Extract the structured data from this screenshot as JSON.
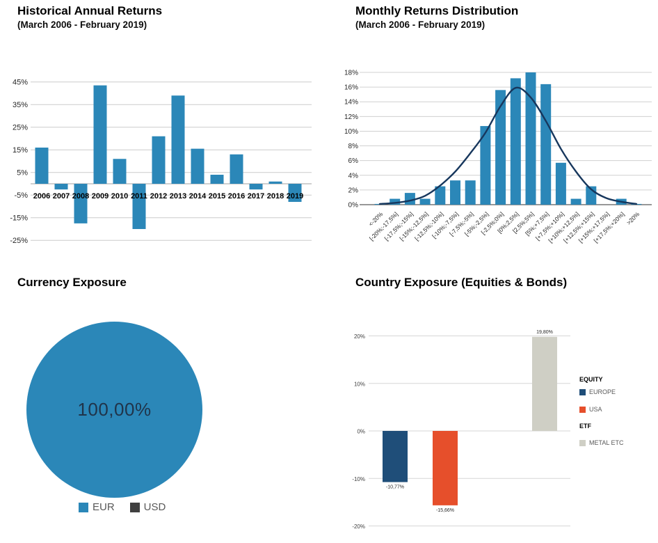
{
  "chart_data": [
    {
      "id": "historical-annual-returns",
      "type": "bar",
      "title": "Historical Annual Returns",
      "subtitle": "(March 2006 - February 2019)",
      "categories": [
        "2006",
        "2007",
        "2008",
        "2009",
        "2010",
        "2011",
        "2012",
        "2013",
        "2014",
        "2015",
        "2016",
        "2017",
        "2018",
        "2019"
      ],
      "values": [
        16,
        -2.5,
        -17.5,
        43.5,
        11,
        -20,
        21,
        39,
        15.5,
        4,
        13,
        -2.5,
        1,
        -8
      ],
      "ylim": [
        -25,
        45
      ],
      "yticks": [
        45,
        35,
        25,
        15,
        5,
        -5,
        -15,
        -25
      ],
      "ytick_labels": [
        "45%",
        "35%",
        "25%",
        "15%",
        "5%",
        "-5%",
        "-15%",
        "-25%"
      ],
      "grid": true,
      "bar_color": "#2b87b8",
      "unit": "percent"
    },
    {
      "id": "monthly-returns-distribution",
      "type": "bar+line",
      "title": "Monthly Returns Distribution",
      "subtitle": "(March 2006 - February 2019)",
      "categories": [
        "<-20%",
        "[-20%;-17,5%]",
        "[-17,5%;-15%]",
        "[-15%;-12,5%]",
        "[-12,5%;-10%]",
        "[-10%;-7,5%]",
        "[-7,5%;-5%]",
        "[-5%;-2,5%]",
        "[-2,5%;0%]",
        "[0%;2,5%]",
        "[2,5%;5%]",
        "[5%;+7,5%]",
        "[+7,5%;+10%]",
        "[+10%;+12,5%]",
        "[+12,5%;+15%]",
        "[+15%;+17,5%]",
        "[+17,5%;+20%]",
        ">20%"
      ],
      "series": [
        {
          "name": "frequency",
          "render": "bar",
          "color": "#2b87b8",
          "values": [
            0.1,
            0.8,
            1.6,
            0.8,
            2.5,
            3.3,
            3.3,
            10.7,
            15.6,
            17.2,
            18.0,
            16.4,
            5.7,
            0.8,
            2.5,
            0,
            0.8,
            0.1
          ]
        },
        {
          "name": "normal-curve",
          "render": "line",
          "color": "#17375d",
          "values": [
            0.1,
            0.25,
            0.55,
            1.2,
            2.6,
            4.5,
            7.0,
            9.8,
            13.4,
            15.9,
            14.6,
            11.4,
            7.6,
            4.5,
            2.1,
            0.9,
            0.4,
            0.1
          ]
        }
      ],
      "ylim": [
        0,
        18
      ],
      "yticks": [
        18,
        16,
        14,
        12,
        10,
        8,
        6,
        4,
        2,
        0
      ],
      "ytick_labels": [
        "18%",
        "16%",
        "14%",
        "12%",
        "10%",
        "8%",
        "6%",
        "4%",
        "2%",
        "0%"
      ],
      "grid": true
    },
    {
      "id": "currency-exposure",
      "type": "pie",
      "title": "Currency Exposure",
      "center_label": "100,00%",
      "slices": [
        {
          "label": "EUR",
          "value": 100,
          "display": "100,00%",
          "color": "#2b87b8"
        },
        {
          "label": "USD",
          "value": 0,
          "color": "#404040"
        }
      ],
      "legend_position": "bottom"
    },
    {
      "id": "country-exposure",
      "type": "bar",
      "title": "Country Exposure (Equities & Bonds)",
      "categories": [
        "EUROPE",
        "USA",
        "METAL ETC"
      ],
      "values": [
        -10.77,
        -15.66,
        19.8
      ],
      "value_labels": [
        "-10,77%",
        "-15,66%",
        "19,80%"
      ],
      "colors": [
        "#1f4e79",
        "#e64f2b",
        "#cfcfc5"
      ],
      "ylim": [
        -20,
        20
      ],
      "yticks": [
        20,
        10,
        0,
        -10,
        -20
      ],
      "ytick_labels": [
        "20%",
        "10%",
        "0%",
        "-10%",
        "-20%"
      ],
      "grid": true,
      "legend": [
        {
          "header": "EQUITY"
        },
        {
          "label": "EUROPE",
          "color": "#1f4e79"
        },
        {
          "label": "USA",
          "color": "#e64f2b"
        },
        {
          "header": "ETF"
        },
        {
          "label": "METAL ETC",
          "color": "#cfcfc5"
        }
      ],
      "legend_position": "right"
    }
  ]
}
